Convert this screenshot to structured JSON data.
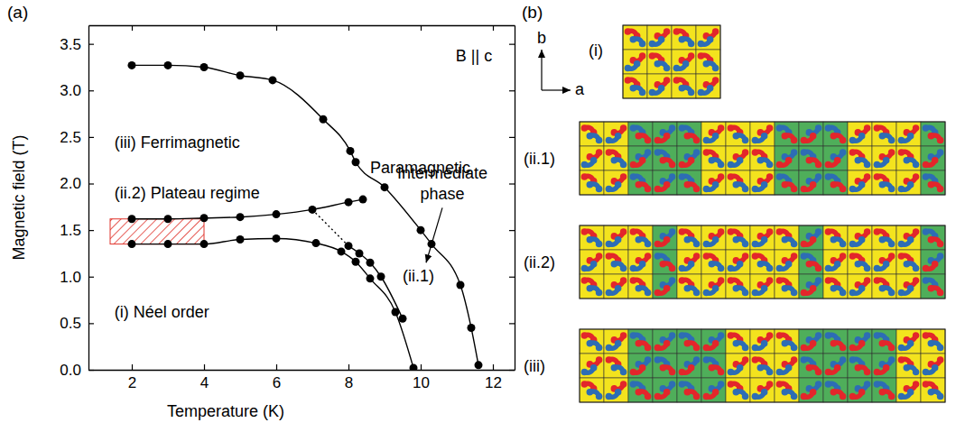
{
  "chart_data": {
    "type": "line",
    "panel_label": "(a)",
    "x_label": "Temperature (K)",
    "y_label": "Magnetic field (T)",
    "xlim": [
      0.8,
      12.6
    ],
    "ylim": [
      0,
      3.7
    ],
    "xticks": [
      2,
      4,
      6,
      8,
      10,
      12
    ],
    "yticks": [
      {
        "value": 0,
        "label": "0.0"
      },
      {
        "value": 0.5,
        "label": "0.5"
      },
      {
        "value": 1,
        "label": "1.0"
      },
      {
        "value": 1.5,
        "label": "1.5"
      },
      {
        "value": 2,
        "label": "2.0"
      },
      {
        "value": 2.5,
        "label": "2.5"
      },
      {
        "value": 3,
        "label": "3.0"
      },
      {
        "value": 3.5,
        "label": "3.5"
      }
    ],
    "series": [
      {
        "color": "#000000",
        "marker": "circle",
        "line_style": "solid",
        "x": [
          2,
          3,
          4,
          5,
          5.9,
          7.3,
          8.05,
          8.2,
          9.0,
          10.0,
          10.3,
          11.1,
          11.4,
          11.6
        ],
        "values": [
          3.27,
          3.27,
          3.25,
          3.16,
          3.11,
          2.69,
          2.35,
          2.23,
          1.96,
          1.5,
          1.35,
          0.91,
          0.45,
          0.05
        ]
      },
      {
        "color": "#000000",
        "marker": "circle",
        "line_style": "solid",
        "x": [
          2,
          3,
          4,
          5,
          6,
          7,
          8,
          8.4
        ],
        "values": [
          1.62,
          1.62,
          1.63,
          1.64,
          1.67,
          1.72,
          1.8,
          1.83
        ]
      },
      {
        "color": "#000000",
        "marker": "circle",
        "line_style": "solid",
        "x": [
          2,
          3,
          4,
          5,
          6,
          7.1,
          7.8,
          8.2,
          8.6,
          9.3,
          9.8
        ],
        "values": [
          1.35,
          1.35,
          1.35,
          1.4,
          1.41,
          1.36,
          1.27,
          1.16,
          0.98,
          0.62,
          0.02
        ]
      },
      {
        "color": "#000000",
        "marker": "circle",
        "line_style": "solid",
        "x": [
          8.0,
          8.3,
          8.6,
          8.9,
          9.5
        ],
        "values": [
          1.33,
          1.25,
          1.15,
          1.0,
          0.55
        ]
      },
      {
        "color": "#000000",
        "marker": "none",
        "line_style": "dotted",
        "x": [
          7.0,
          8.0
        ],
        "values": [
          1.72,
          1.33
        ]
      }
    ],
    "shaded_region": {
      "color": "#e0322a",
      "x": [
        1.4,
        4.0
      ],
      "y": [
        1.35,
        1.62
      ]
    },
    "annotations": [
      {
        "text": "B || c",
        "x": 10.97,
        "y": 3.31
      },
      {
        "text": "Paramagnetic",
        "x": 8.6,
        "y": 2.11
      },
      {
        "text": "(iii) Ferrimagnetic",
        "x": 1.52,
        "y": 2.38
      },
      {
        "text": [
          "Intermediate",
          "phase"
        ],
        "x": 10.6,
        "y": 2.05
      },
      {
        "text": "(ii.2) Plateau regime",
        "x": 1.52,
        "y": 1.84
      },
      {
        "text": "(ii.1)",
        "x": 9.5,
        "y": 0.95
      },
      {
        "text": "(i) Néel order",
        "x": 1.52,
        "y": 0.56
      }
    ],
    "arrows": [
      {
        "from": [
          10.6,
          1.74
        ],
        "to": [
          10.15,
          1.15
        ]
      }
    ]
  },
  "diagram": {
    "panel_label": "(b)",
    "axis_labels": {
      "vertical": "b",
      "horizontal": "a"
    },
    "rows": 3,
    "dumbbell_colors": [
      "#e3262b",
      "#2d6db5"
    ],
    "panels": [
      {
        "label": "(i)",
        "domains": [
          {
            "color": "#f3e31e",
            "columns": 4
          }
        ]
      },
      {
        "label": "(ii.1)",
        "domains": [
          {
            "color": "#f3e31e",
            "columns": 2
          },
          {
            "color": "#4fae5a",
            "columns": 3
          },
          {
            "color": "#f3e31e",
            "columns": 3
          },
          {
            "color": "#4fae5a",
            "columns": 3
          },
          {
            "color": "#f3e31e",
            "columns": 3
          },
          {
            "color": "#4fae5a",
            "columns": 1
          }
        ]
      },
      {
        "label": "(ii.2)",
        "domains": [
          {
            "color": "#f3e31e",
            "columns": 3
          },
          {
            "color": "#4fae5a",
            "columns": 1
          },
          {
            "color": "#f3e31e",
            "columns": 5
          },
          {
            "color": "#4fae5a",
            "columns": 1
          },
          {
            "color": "#f3e31e",
            "columns": 4
          },
          {
            "color": "#4fae5a",
            "columns": 1
          }
        ]
      },
      {
        "label": "(iii)",
        "domains": [
          {
            "color": "#f3e31e",
            "columns": 2
          },
          {
            "color": "#4fae5a",
            "columns": 4
          },
          {
            "color": "#f3e31e",
            "columns": 3
          },
          {
            "color": "#4fae5a",
            "columns": 4
          },
          {
            "color": "#f3e31e",
            "columns": 2
          }
        ]
      }
    ]
  }
}
